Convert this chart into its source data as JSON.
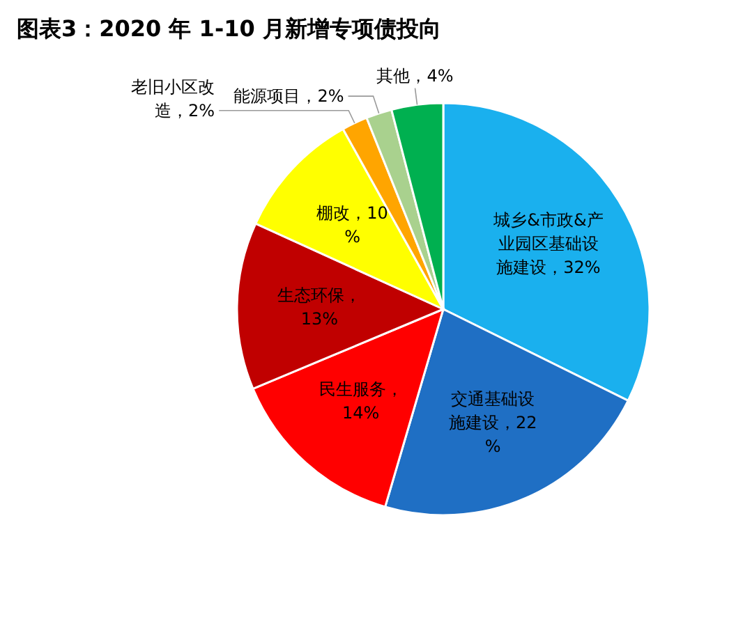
{
  "chart_data": {
    "type": "pie",
    "title": "图表3：2020 年 1-10 月新增专项债投向",
    "categories": [
      "城乡&市政&产业园区基础设施建设",
      "交通基础设施建设",
      "民生服务",
      "生态环保",
      "棚改",
      "老旧小区改造",
      "能源项目",
      "其他"
    ],
    "values": [
      32,
      22,
      14,
      13,
      10,
      2,
      2,
      4
    ],
    "value_labels": [
      "，32%",
      "，22%",
      "，14%",
      "，13%",
      "，10%",
      "，2%",
      "，2%",
      "，4%"
    ],
    "colors": [
      "#1ab0ee",
      "#1f6fc4",
      "#ff0000",
      "#c00000",
      "#ffff00",
      "#ffa500",
      "#a9d18e",
      "#00b050"
    ],
    "legend": false
  }
}
